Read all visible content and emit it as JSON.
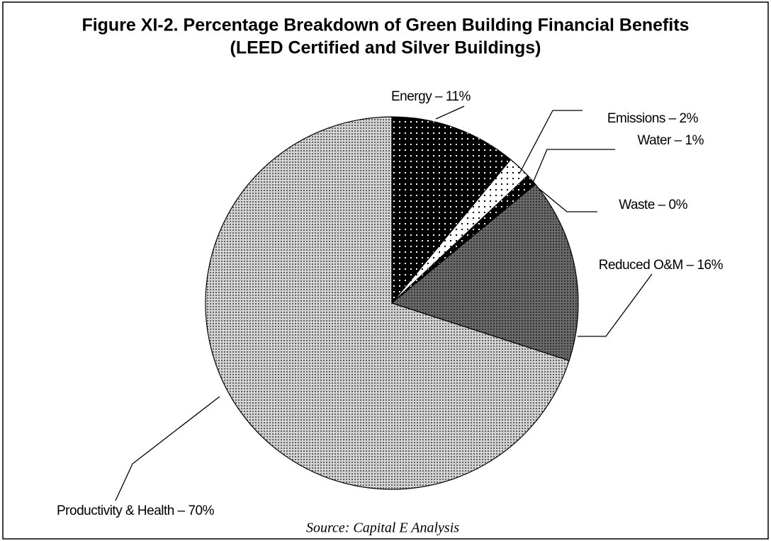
{
  "chart_data": {
    "type": "pie",
    "title": "Figure XI-2. Percentage Breakdown of Green Building Financial Benefits",
    "subtitle": "(LEED Certified and Silver Buildings)",
    "values": [
      11,
      2,
      1,
      0,
      16,
      70
    ],
    "value_labels": [
      "Energy – 11%",
      "Emissions – 2%",
      "Water – 1%",
      "Waste – 0%",
      "Reduced O&M – 16%",
      "Productivity & Health – 70%"
    ],
    "colors": [
      "#000000",
      "#ffffff",
      "#000000",
      "#ffffff",
      "#6a6a6a",
      "#d4d4d4"
    ],
    "source": "Source: Capital E Analysis"
  }
}
